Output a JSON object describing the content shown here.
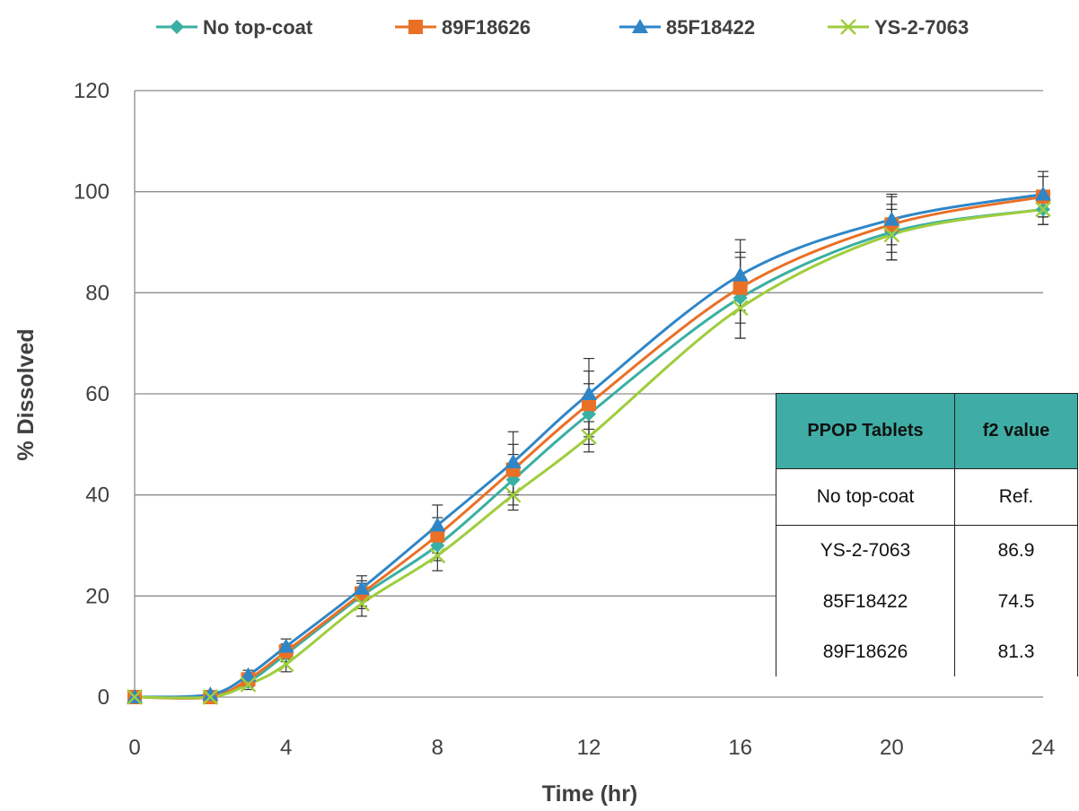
{
  "chart_data": {
    "type": "line",
    "xlabel": "Time (hr)",
    "ylabel": "% Dissolved",
    "xlim": [
      0,
      24
    ],
    "ylim": [
      0,
      120
    ],
    "x_ticks": [
      0,
      4,
      8,
      12,
      16,
      20,
      24
    ],
    "y_ticks": [
      0,
      20,
      40,
      60,
      80,
      100,
      120
    ],
    "grid": "horizontal",
    "legend_position": "top",
    "x": [
      0,
      2,
      3,
      4,
      6,
      8,
      10,
      12,
      16,
      20,
      24
    ],
    "series": [
      {
        "name": "No top-coat",
        "color": "#3aafa3",
        "marker": "diamond",
        "values": [
          0,
          0.3,
          3.0,
          8.5,
          20.0,
          30.0,
          43.0,
          56.0,
          79.0,
          92.0,
          96.5
        ],
        "error": [
          0,
          0.5,
          1,
          1.5,
          2.5,
          3,
          5,
          6,
          8,
          5.5,
          3
        ]
      },
      {
        "name": "89F18626",
        "color": "#ea7026",
        "marker": "square",
        "values": [
          0,
          0,
          3.5,
          9.0,
          20.5,
          32.0,
          45.0,
          58.0,
          81.0,
          93.5,
          99.0
        ],
        "error": [
          0,
          0.5,
          1,
          1.5,
          2.5,
          3.5,
          5,
          6.5,
          7,
          5.5,
          4
        ]
      },
      {
        "name": "85F18422",
        "color": "#2f86c7",
        "marker": "triangle",
        "values": [
          0,
          0.5,
          4.3,
          10.0,
          21.5,
          34.0,
          46.5,
          60.0,
          83.5,
          94.5,
          99.5
        ],
        "error": [
          0,
          0.8,
          1,
          1.5,
          2.5,
          4,
          6,
          7,
          7,
          5,
          4.5
        ]
      },
      {
        "name": "YS-2-7063",
        "color": "#9fcd3d",
        "marker": "x",
        "values": [
          0,
          0,
          2.5,
          6.5,
          18.5,
          28.0,
          40.0,
          51.5,
          77.0,
          91.5,
          96.5
        ],
        "error": [
          0,
          0.5,
          1,
          1.5,
          2.5,
          3,
          3,
          3,
          6,
          5,
          3
        ]
      }
    ]
  },
  "table": {
    "headers": [
      "PPOP Tablets",
      "f2 value"
    ],
    "rows": [
      [
        "No top-coat",
        "Ref."
      ],
      [
        "YS-2-7063",
        "86.9"
      ],
      [
        "85F18422",
        "74.5"
      ],
      [
        "89F18626",
        "81.3"
      ]
    ],
    "header_color": "#3fada5"
  }
}
